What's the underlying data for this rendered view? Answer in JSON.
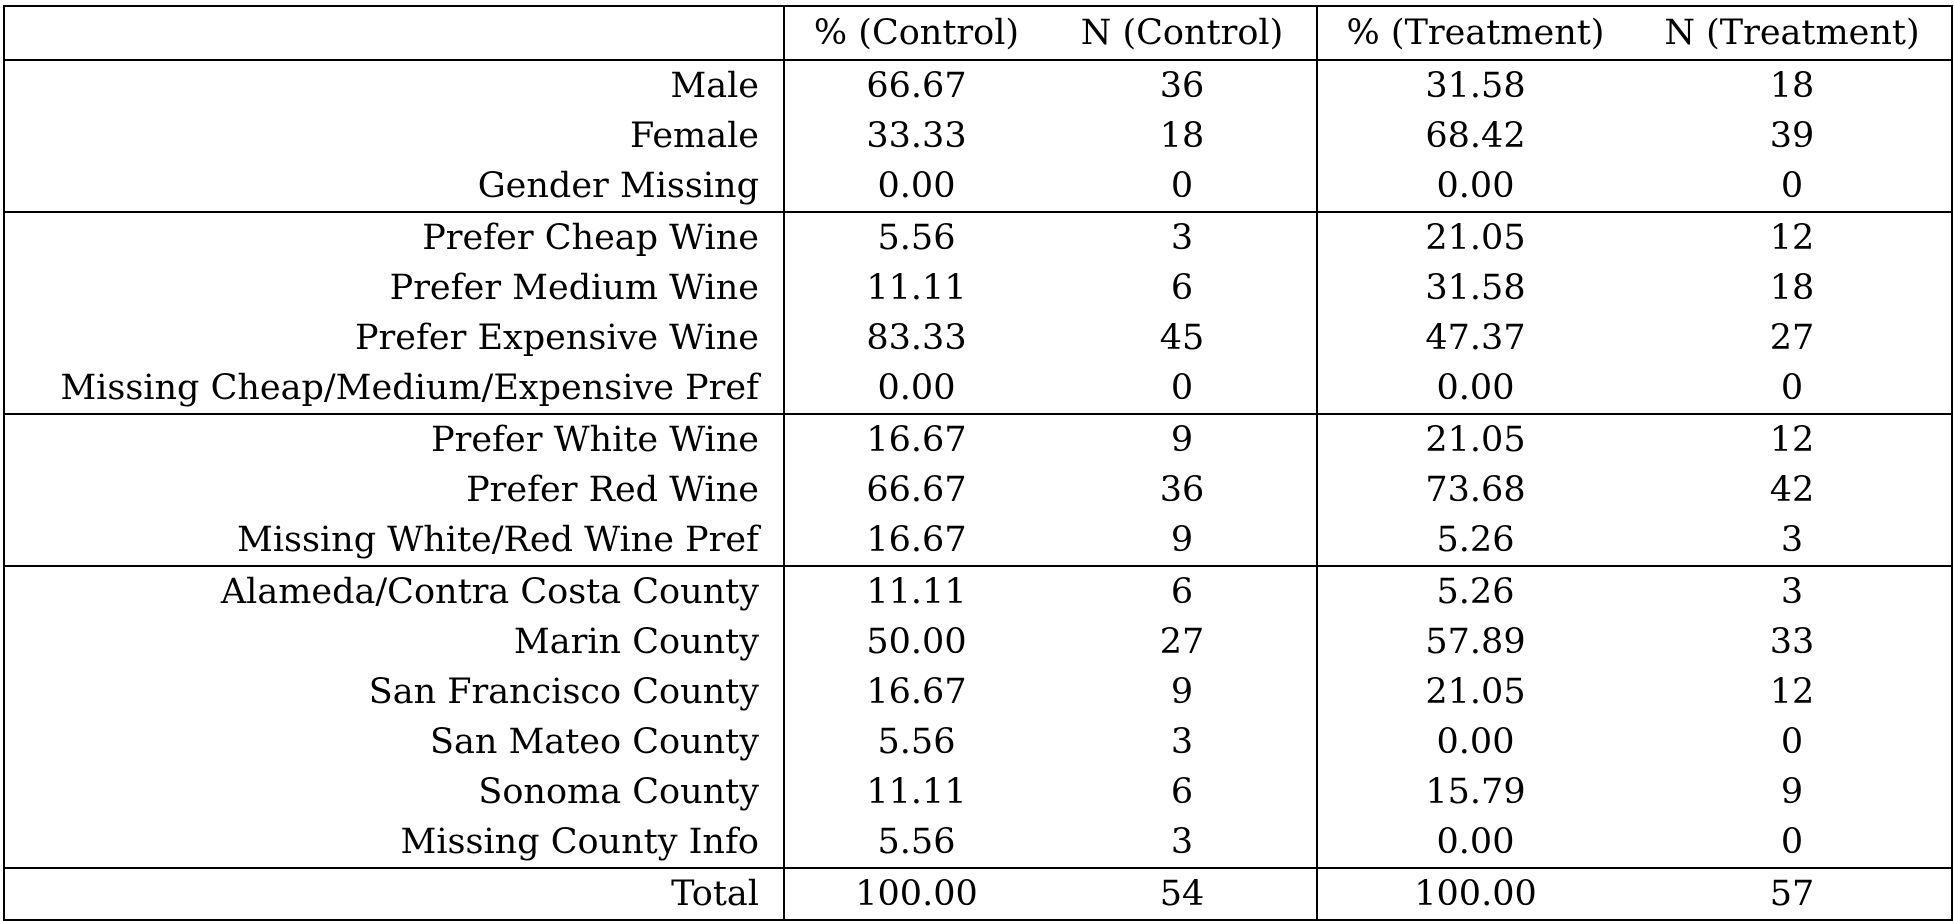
{
  "table": {
    "headers": [
      "",
      "% (Control)",
      "N (Control)",
      "% (Treatment)",
      "N (Treatment)"
    ],
    "groups": [
      {
        "rows": [
          {
            "label": "Male",
            "pct_control": "66.67",
            "n_control": "36",
            "pct_treatment": "31.58",
            "n_treatment": "18"
          },
          {
            "label": "Female",
            "pct_control": "33.33",
            "n_control": "18",
            "pct_treatment": "68.42",
            "n_treatment": "39"
          },
          {
            "label": "Gender Missing",
            "pct_control": "0.00",
            "n_control": "0",
            "pct_treatment": "0.00",
            "n_treatment": "0"
          }
        ]
      },
      {
        "rows": [
          {
            "label": "Prefer Cheap Wine",
            "pct_control": "5.56",
            "n_control": "3",
            "pct_treatment": "21.05",
            "n_treatment": "12"
          },
          {
            "label": "Prefer Medium Wine",
            "pct_control": "11.11",
            "n_control": "6",
            "pct_treatment": "31.58",
            "n_treatment": "18"
          },
          {
            "label": "Prefer Expensive Wine",
            "pct_control": "83.33",
            "n_control": "45",
            "pct_treatment": "47.37",
            "n_treatment": "27"
          },
          {
            "label": "Missing Cheap/Medium/Expensive Pref",
            "pct_control": "0.00",
            "n_control": "0",
            "pct_treatment": "0.00",
            "n_treatment": "0"
          }
        ]
      },
      {
        "rows": [
          {
            "label": "Prefer White Wine",
            "pct_control": "16.67",
            "n_control": "9",
            "pct_treatment": "21.05",
            "n_treatment": "12"
          },
          {
            "label": "Prefer Red Wine",
            "pct_control": "66.67",
            "n_control": "36",
            "pct_treatment": "73.68",
            "n_treatment": "42"
          },
          {
            "label": "Missing White/Red Wine Pref",
            "pct_control": "16.67",
            "n_control": "9",
            "pct_treatment": "5.26",
            "n_treatment": "3"
          }
        ]
      },
      {
        "rows": [
          {
            "label": "Alameda/Contra Costa County",
            "pct_control": "11.11",
            "n_control": "6",
            "pct_treatment": "5.26",
            "n_treatment": "3"
          },
          {
            "label": "Marin County",
            "pct_control": "50.00",
            "n_control": "27",
            "pct_treatment": "57.89",
            "n_treatment": "33"
          },
          {
            "label": "San Francisco County",
            "pct_control": "16.67",
            "n_control": "9",
            "pct_treatment": "21.05",
            "n_treatment": "12"
          },
          {
            "label": "San Mateo County",
            "pct_control": "5.56",
            "n_control": "3",
            "pct_treatment": "0.00",
            "n_treatment": "0"
          },
          {
            "label": "Sonoma County",
            "pct_control": "11.11",
            "n_control": "6",
            "pct_treatment": "15.79",
            "n_treatment": "9"
          },
          {
            "label": "Missing County Info",
            "pct_control": "5.56",
            "n_control": "3",
            "pct_treatment": "0.00",
            "n_treatment": "0"
          }
        ]
      },
      {
        "rows": [
          {
            "label": "Total",
            "pct_control": "100.00",
            "n_control": "54",
            "pct_treatment": "100.00",
            "n_treatment": "57"
          }
        ]
      }
    ]
  }
}
